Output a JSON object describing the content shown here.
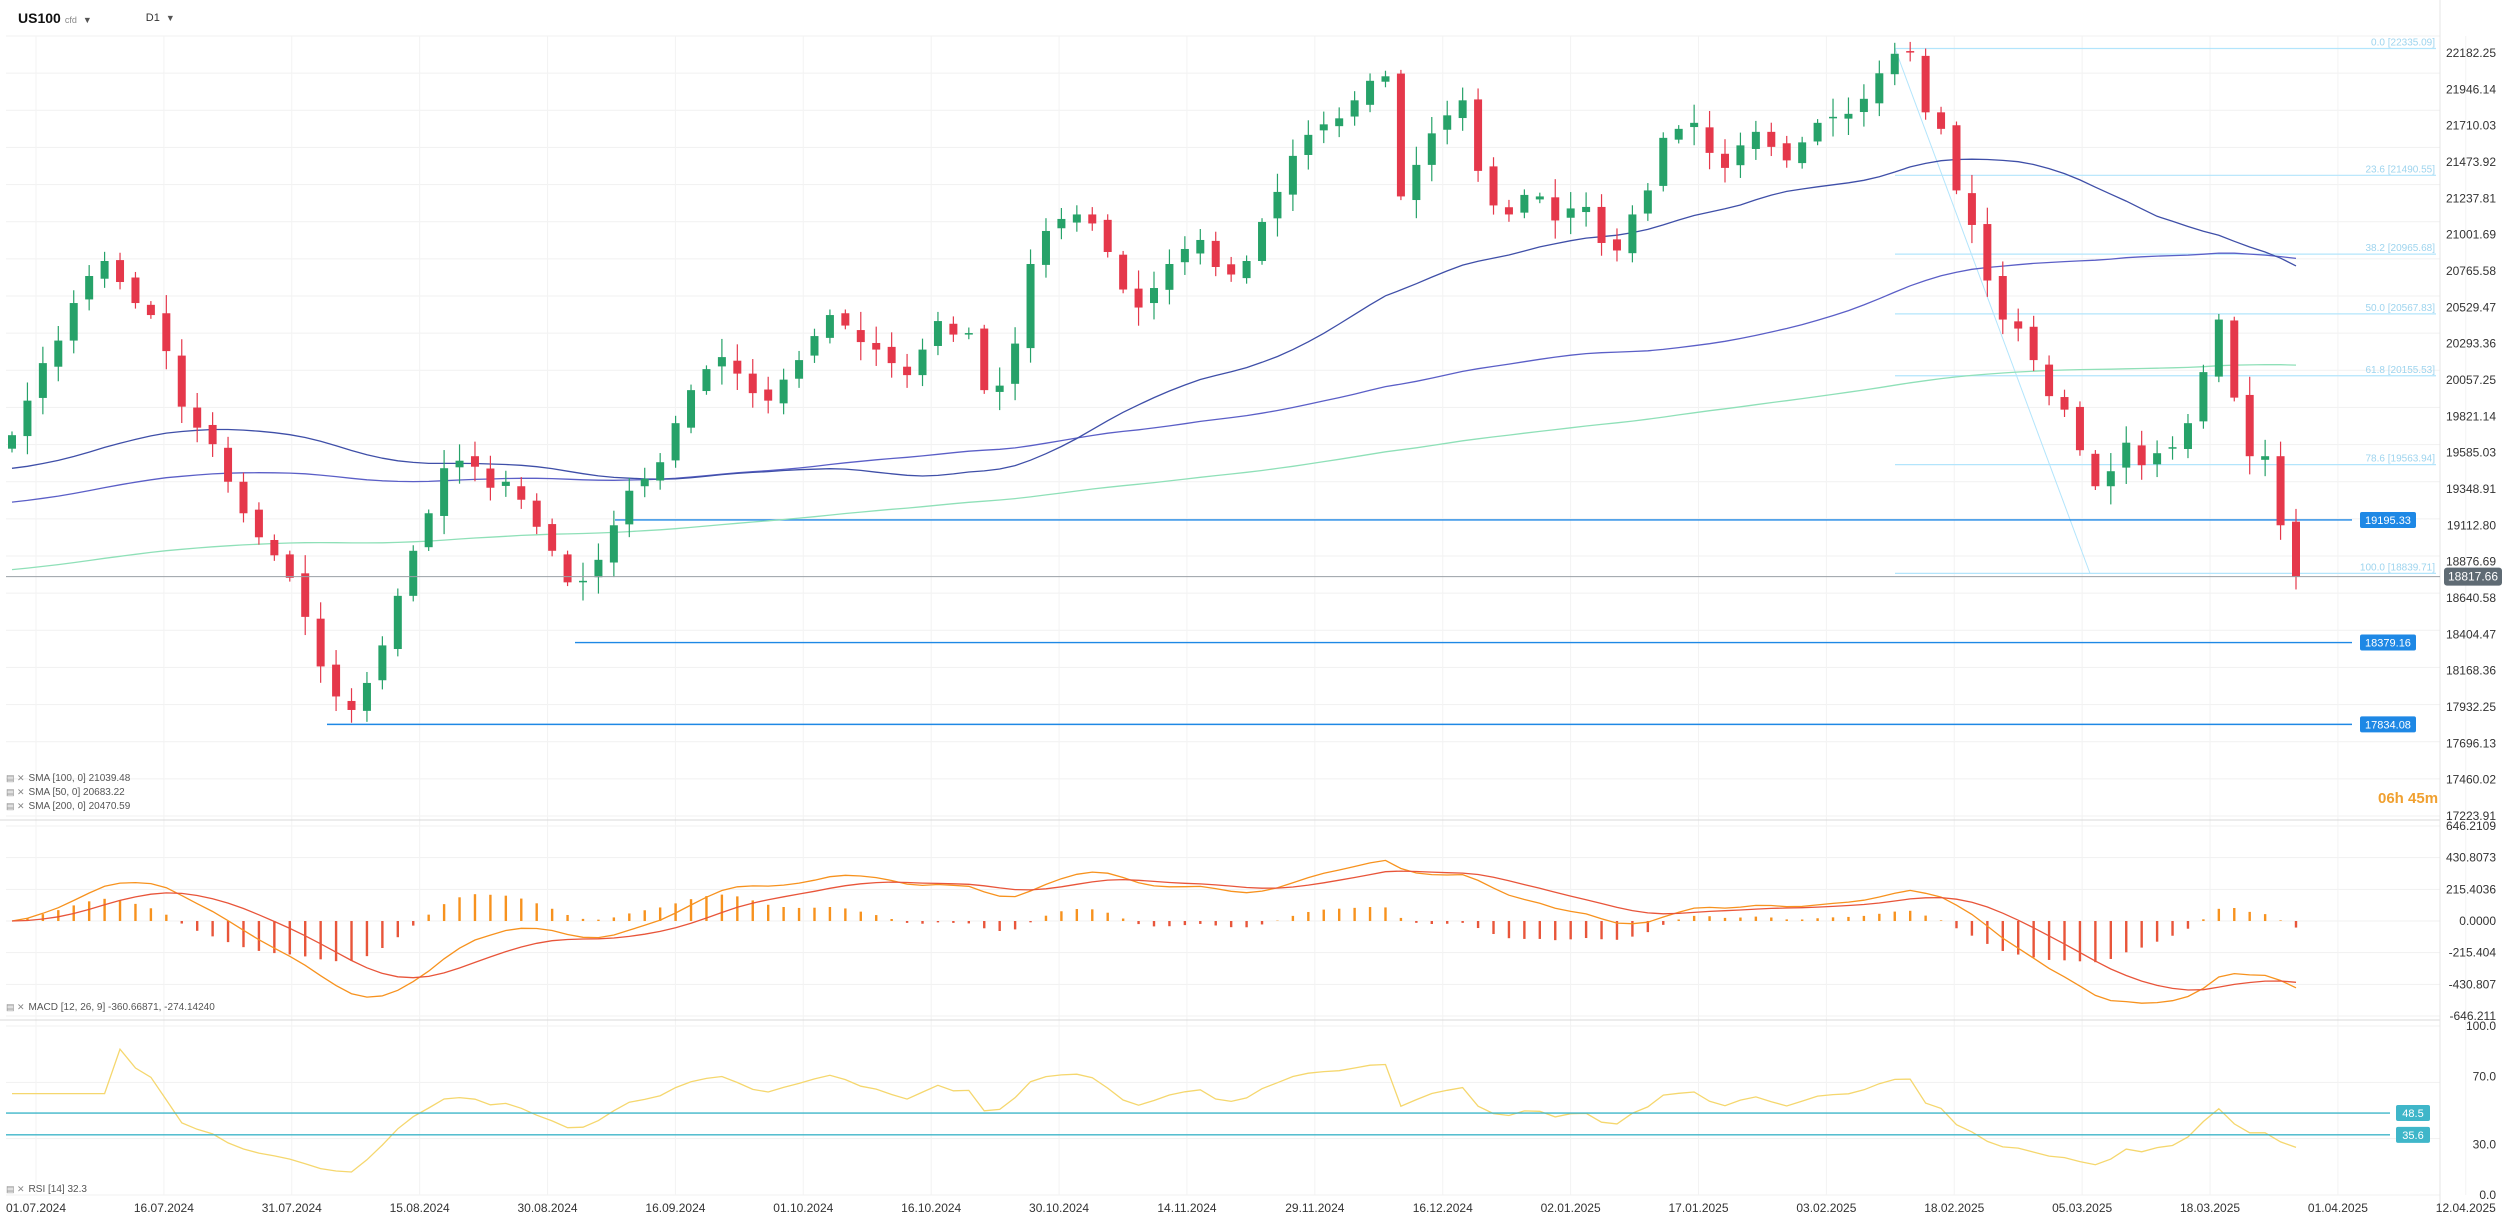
{
  "header": {
    "symbol": "US100",
    "symbol_suffix": "cfd",
    "timeframe": "D1"
  },
  "timer": "06h 45m",
  "colors": {
    "up": "#26a269",
    "down": "#e5384b",
    "sma100": "#5b5fc7",
    "sma50": "#3f4fa8",
    "sma200": "#8fe0b8",
    "level": "#1e88e5",
    "fib": "#b3e5fc",
    "macd_pos": "#f7921e",
    "macd_neg": "#e8553a",
    "rsi": "#f5d76e",
    "rsi_band": "#3fb6c9"
  },
  "legends": {
    "sma100": "SMA [100, 0]  21039.48",
    "sma50": "SMA [50, 0]  20683.22",
    "sma200": "SMA [200, 0]  20470.59",
    "macd": "MACD [12, 26, 9]  -360.66871,  -274.14240",
    "rsi": "RSI [14]  32.3"
  },
  "chart_data": {
    "type": "candlestick",
    "instrument": "US100",
    "interval": "D1",
    "x_tick_labels": [
      "01.07.2024",
      "16.07.2024",
      "31.07.2024",
      "15.08.2024",
      "30.08.2024",
      "16.09.2024",
      "01.10.2024",
      "16.10.2024",
      "30.10.2024",
      "14.11.2024",
      "29.11.2024",
      "16.12.2024",
      "02.01.2025",
      "17.01.2025",
      "03.02.2025",
      "18.02.2025",
      "05.03.2025",
      "18.03.2025",
      "01.04.2025",
      "12.04.2025"
    ],
    "price_axis": {
      "ylim": [
        17223.91,
        22418.36
      ],
      "ticks": [
        "22182.25",
        "21946.14",
        "21710.03",
        "21473.92",
        "21237.81",
        "21001.69",
        "20765.58",
        "20529.47",
        "20293.36",
        "20057.25",
        "19821.14",
        "19585.03",
        "19348.91",
        "19112.80",
        "18876.69",
        "18640.58",
        "18404.47",
        "18168.36",
        "17932.25",
        "17696.13",
        "17460.02",
        "17223.91"
      ],
      "current_price": "18817.66"
    },
    "close_path": [
      19760,
      19990,
      20240,
      20390,
      20640,
      20820,
      20920,
      20780,
      20640,
      20560,
      20320,
      19950,
      19810,
      19700,
      19450,
      19240,
      19080,
      18960,
      18810,
      18550,
      18220,
      18020,
      17930,
      18110,
      18360,
      18690,
      18990,
      19240,
      19540,
      19590,
      19550,
      19410,
      19450,
      19330,
      19150,
      18990,
      18780,
      18790,
      18930,
      19160,
      19390,
      19470,
      19580,
      19840,
      20060,
      20200,
      20280,
      20170,
      20040,
      19990,
      20130,
      20260,
      20420,
      20560,
      20490,
      20380,
      20330,
      20240,
      20160,
      20330,
      20520,
      20430,
      20440,
      20060,
      20090,
      20370,
      20900,
      21120,
      21200,
      21230,
      21170,
      20980,
      20730,
      20610,
      20740,
      20900,
      21000,
      21060,
      20880,
      20830,
      20920,
      21180,
      21380,
      21620,
      21760,
      21830,
      21870,
      21990,
      22120,
      22150,
      21350,
      21560,
      21770,
      21890,
      21990,
      21520,
      21290,
      21230,
      21360,
      21350,
      21190,
      21270,
      21280,
      21040,
      20990,
      21230,
      21390,
      21740,
      21800,
      21840,
      21640,
      21540,
      21690,
      21780,
      21680,
      21590,
      21710,
      21840,
      21880,
      21900,
      22000,
      22170,
      22300,
      22310,
      21910,
      21800,
      21390,
      21160,
      20790,
      20530,
      20470,
      20260,
      20020,
      19930,
      19660,
      19420,
      19520,
      19710,
      19560,
      19640,
      19680,
      19840,
      20180,
      20530,
      20010,
      19620,
      19620,
      19160,
      18817.66
    ],
    "close_path_note": "approximate daily closes read against the price axis",
    "levels": [
      {
        "label": "19195.33",
        "value": 19195.33
      },
      {
        "label": "18379.16",
        "value": 18379.16
      },
      {
        "label": "17834.08",
        "value": 17834.08
      }
    ],
    "fibonacci": [
      {
        "label": "0.0 [22335.09]",
        "value": 22335.09
      },
      {
        "label": "23.6 [21490.55]",
        "value": 21490.55
      },
      {
        "label": "38.2 [20965.68]",
        "value": 20965.68
      },
      {
        "label": "50.0 [20567.83]",
        "value": 20567.83
      },
      {
        "label": "61.8 [20155.53]",
        "value": 20155.53
      },
      {
        "label": "78.6 [19563.94]",
        "value": 19563.94
      },
      {
        "label": "100.0 [18839.71]",
        "value": 18839.71
      }
    ],
    "sma": [
      {
        "name": "SMA 100",
        "last": 21039.48
      },
      {
        "name": "SMA 50",
        "last": 20683.22
      },
      {
        "name": "SMA 200",
        "last": 20470.59
      }
    ],
    "macd_axis": {
      "ylim": [
        -646.211,
        646.2109
      ],
      "ticks": [
        "646.2109",
        "430.8073",
        "215.4036",
        "0.0000",
        "-215.404",
        "-430.807",
        "-646.211"
      ],
      "macd": -360.66871,
      "signal": -274.1424
    },
    "rsi_axis": {
      "ylim": [
        0,
        100
      ],
      "ticks": [
        "100.0",
        "70.0",
        "30.0",
        "0.0"
      ],
      "value": 32.3,
      "bands": [
        {
          "label": "48.5",
          "value": 48.5
        },
        {
          "label": "35.6",
          "value": 35.6
        }
      ]
    },
    "grid": true
  }
}
